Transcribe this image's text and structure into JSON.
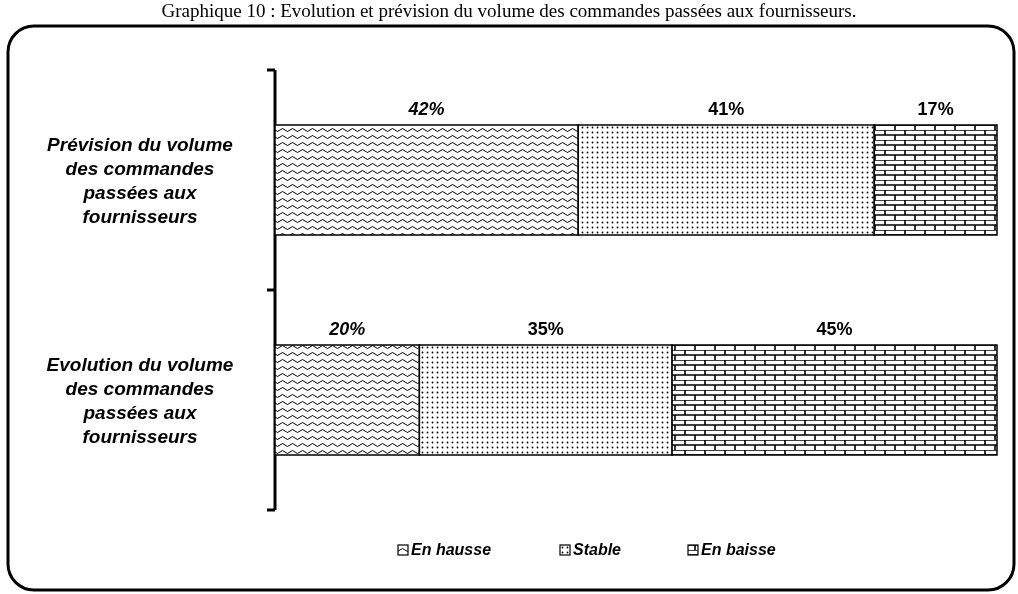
{
  "chart_data": {
    "type": "bar",
    "title": "Graphique 10 : Evolution et prévision du volume des commandes passées aux fournisseurs.",
    "categories": [
      "Prévision du volume des commandes passées aux fournisseurs",
      "Evolution du volume des commandes passées aux fournisseurs"
    ],
    "orientation": "horizontal",
    "stacked": true,
    "xlim": [
      0,
      100
    ],
    "tick_labels": "y",
    "legend": "bottom",
    "series": [
      {
        "name": "En hausse",
        "color": "#000000",
        "values": [
          42,
          20
        ],
        "value_labels": [
          "42%",
          "20%"
        ]
      },
      {
        "name": "Stable",
        "color": "#000000",
        "values": [
          41,
          35
        ],
        "value_labels": [
          "41%",
          "35%"
        ]
      },
      {
        "name": "En baisse",
        "color": "#000000",
        "values": [
          17,
          45
        ],
        "value_labels": [
          "17%",
          "45%"
        ]
      }
    ]
  }
}
